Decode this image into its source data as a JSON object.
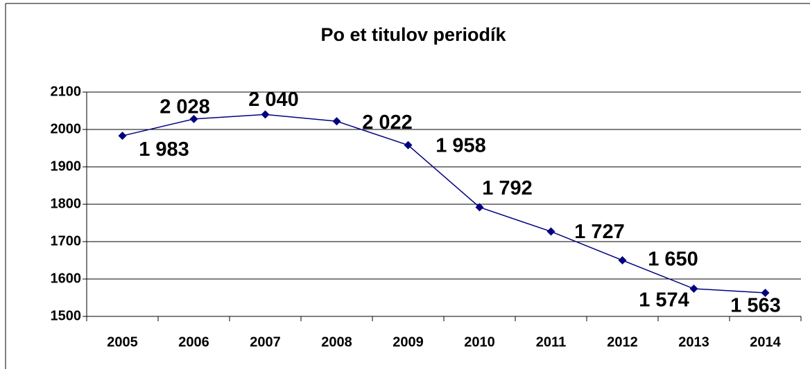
{
  "chart_data": {
    "type": "line",
    "title": "Po et titulov periodík",
    "categories": [
      "2005",
      "2006",
      "2007",
      "2008",
      "2009",
      "2010",
      "2011",
      "2012",
      "2013",
      "2014"
    ],
    "series": [
      {
        "name": "Počet titulov periodík",
        "color": "#000080",
        "values": [
          1983,
          2028,
          2040,
          2022,
          1958,
          1792,
          1727,
          1650,
          1574,
          1563
        ],
        "value_labels": [
          "1 983",
          "2 028",
          "2 040",
          "2 022",
          "1 958",
          "1 792",
          "1 727",
          "1 650",
          "1 574",
          "1 563"
        ]
      }
    ],
    "ylim": [
      1500,
      2100
    ],
    "yticks": [
      1500,
      1600,
      1700,
      1800,
      1900,
      2000,
      2100
    ],
    "grid": true
  }
}
